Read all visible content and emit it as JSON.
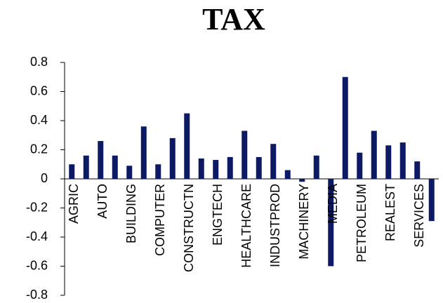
{
  "chart_data": {
    "type": "bar",
    "title": "TAX",
    "categories": [
      "AGRIC",
      null,
      "AUTO",
      null,
      "BUILDING",
      null,
      "COMPUTER",
      null,
      "CONSTRUCTN",
      null,
      "ENGTECH",
      null,
      "HEALTHCARE",
      null,
      "INDUSTPROD",
      null,
      "MACHINERY",
      null,
      "MEDIA",
      null,
      "PETROLEUM",
      null,
      "REALEST",
      null,
      "SERVICES",
      null
    ],
    "values": [
      0.1,
      0.16,
      0.26,
      0.16,
      0.09,
      0.36,
      0.1,
      0.28,
      0.45,
      0.14,
      0.13,
      0.15,
      0.33,
      0.15,
      0.24,
      0.06,
      -0.02,
      0.16,
      -0.6,
      0.7,
      0.18,
      0.33,
      0.23,
      0.25,
      0.12,
      -0.29
    ],
    "color": "#0d1a63",
    "ylim": [
      -0.8,
      0.8
    ],
    "yticks": [
      -0.8,
      -0.6,
      -0.4,
      -0.2,
      0,
      0.2,
      0.4,
      0.6,
      0.8
    ],
    "grid": false
  }
}
